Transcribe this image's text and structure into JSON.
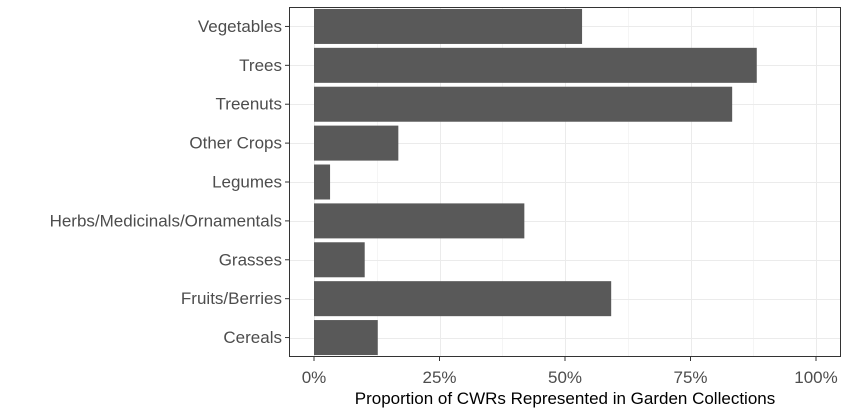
{
  "chart_data": {
    "type": "bar",
    "orientation": "horizontal",
    "categories": [
      "Cereals",
      "Fruits/Berries",
      "Grasses",
      "Herbs/Medicinals/Ornamentals",
      "Legumes",
      "Other Crops",
      "Treenuts",
      "Trees",
      "Vegetables"
    ],
    "values": [
      0.127,
      0.592,
      0.101,
      0.419,
      0.032,
      0.168,
      0.833,
      0.882,
      0.534
    ],
    "xlabel": "Proportion of CWRs Represented in Garden Collections",
    "ylabel": "",
    "xlim": [
      0,
      1
    ],
    "x_ticks": [
      0,
      0.25,
      0.5,
      0.75,
      1
    ],
    "x_tick_labels": [
      "0%",
      "25%",
      "50%",
      "75%",
      "100%"
    ],
    "grid": true,
    "legend": "none",
    "colors": {
      "bar": "#595959",
      "grid_major": "#ebebeb",
      "grid_minor": "#f5f5f5",
      "panel_border": "#333333",
      "tick_text": "#4d4d4d"
    }
  }
}
